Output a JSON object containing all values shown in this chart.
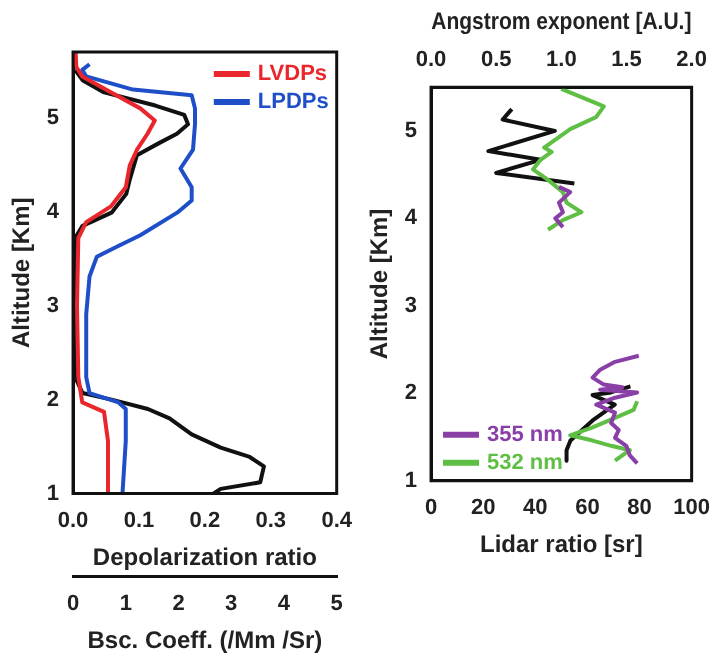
{
  "chart_data": [
    {
      "type": "line",
      "ylabel": "Altitude [Km]",
      "xlabel": "Depolarization ratio",
      "x2label": "Bsc. Coeff. (/Mm /Sr)",
      "ylim": [
        1,
        5.7
      ],
      "yticks": [
        1,
        2,
        3,
        4,
        5
      ],
      "xlim": [
        0,
        0.4
      ],
      "xticks": [
        {
          "value": 0,
          "label": "0.0"
        },
        0.1,
        0.2,
        0.3,
        0.4
      ],
      "x2lim": [
        0,
        5
      ],
      "x2ticks": [
        0,
        1,
        2,
        3,
        4,
        5
      ],
      "legend": "top right",
      "series": [
        {
          "name": "LVDPs",
          "color": "#e8262b",
          "x": [
            0.004,
            0.005,
            0.014,
            0.058,
            0.102,
            0.124,
            0.113,
            0.097,
            0.086,
            0.08,
            0.058,
            0.02,
            0.008,
            0.006,
            0.008,
            0.014,
            0.047,
            0.053,
            0.053
          ],
          "values": [
            5.69,
            5.54,
            5.44,
            5.27,
            5.1,
            4.97,
            4.83,
            4.66,
            4.49,
            4.26,
            4.06,
            3.89,
            3.72,
            3.0,
            2.24,
            1.97,
            1.87,
            1.56,
            1.0
          ]
        },
        {
          "name": "LPDPs",
          "color": "#1f4fc8",
          "x": [
            0.025,
            0.014,
            0.02,
            0.091,
            0.18,
            0.185,
            0.185,
            0.182,
            0.163,
            0.18,
            0.18,
            0.158,
            0.102,
            0.064,
            0.036,
            0.025,
            0.02,
            0.02,
            0.025,
            0.069,
            0.08,
            0.08,
            0.075
          ],
          "values": [
            5.57,
            5.51,
            5.44,
            5.3,
            5.24,
            5.1,
            4.93,
            4.66,
            4.46,
            4.26,
            4.12,
            3.99,
            3.75,
            3.62,
            3.52,
            3.31,
            2.91,
            2.24,
            2.07,
            1.97,
            1.9,
            1.56,
            1.0
          ]
        },
        {
          "color": "#111111",
          "axis": "x2",
          "x": [
            0.04,
            0.18,
            0.59,
            1.56,
            2.11,
            2.18,
            1.97,
            1.63,
            1.21,
            1.07,
            1.01,
            0.73,
            0.18,
            0.04,
            0.04,
            0.04,
            0.18,
            0.73,
            1.42,
            1.83,
            2.25,
            2.8,
            3.35,
            3.62,
            3.55,
            2.8,
            2.66
          ],
          "values": [
            5.51,
            5.4,
            5.27,
            5.13,
            5.03,
            4.93,
            4.83,
            4.73,
            4.6,
            4.33,
            4.19,
            3.99,
            3.85,
            3.72,
            2.91,
            2.24,
            2.07,
            2.0,
            1.9,
            1.8,
            1.63,
            1.49,
            1.39,
            1.29,
            1.12,
            1.05,
            1.0
          ]
        }
      ]
    },
    {
      "type": "line",
      "ylabel": "Altitude [Km]",
      "xlabel": "Lidar ratio [sr]",
      "x2label": "Angstrom exponent [A.U.]",
      "ylim": [
        1,
        5.5
      ],
      "yticks": [
        1,
        2,
        3,
        4,
        5
      ],
      "xlim": [
        0,
        100
      ],
      "xticks": [
        0,
        20,
        40,
        60,
        80,
        100
      ],
      "x2lim": [
        0,
        2
      ],
      "x2ticks": [
        {
          "value": 0,
          "label": "0.0"
        },
        0.5,
        {
          "value": 1,
          "label": "1.0"
        },
        1.5,
        {
          "value": 2,
          "label": "2.0"
        }
      ],
      "legend": "bottom left",
      "series": [
        {
          "name": "355 nm",
          "color": "#8a3fa6",
          "x": [
            49.1,
            53.4,
            49.1,
            50.6,
            47.7,
            50.6,
            null,
            79.7,
            70.6,
            64.9,
            62,
            66.3,
            73.4,
            64.9,
            79.1,
            70.6,
            63.4,
            70.6,
            69.1,
            72,
            70.6,
            74.9,
            76.3,
            79.1
          ],
          "values": [
            4.36,
            4.3,
            4.18,
            4.07,
            4.0,
            3.9,
            null,
            2.43,
            2.36,
            2.27,
            2.18,
            2.1,
            2.07,
            2.04,
            2.01,
            1.95,
            1.87,
            1.78,
            1.66,
            1.58,
            1.49,
            1.4,
            1.29,
            1.2
          ]
        },
        {
          "name": "532 nm",
          "color": "#5fbf45",
          "x": [
            50,
            66.3,
            63.4,
            53.4,
            43.4,
            46.3,
            42,
            39.1,
            44.9,
            50.6,
            52,
            57.7,
            50.6,
            44.9,
            null,
            79.1,
            77.7,
            70.6,
            62,
            53.4,
            62,
            69.1,
            76.3,
            73.4,
            70.6
          ],
          "values": [
            5.48,
            5.28,
            5.16,
            5.02,
            4.81,
            4.76,
            4.67,
            4.56,
            4.44,
            4.3,
            4.18,
            4.07,
            3.98,
            3.87,
            null,
            1.91,
            1.81,
            1.72,
            1.61,
            1.52,
            1.46,
            1.4,
            1.35,
            1.29,
            1.23
          ]
        },
        {
          "color": "#111111",
          "axis": "x2",
          "x": [
            0.62,
            0.55,
            0.95,
            0.44,
            0.84,
            0.5,
            1.1,
            null,
            1.53,
            1.38,
            1.24,
            1.41,
            1.24,
            1.07,
            1.04,
            1.04
          ],
          "values": [
            5.25,
            5.13,
            5.0,
            4.77,
            4.67,
            4.52,
            4.4,
            null,
            2.08,
            2.01,
            1.98,
            1.87,
            1.69,
            1.46,
            1.35,
            1.23
          ]
        }
      ]
    }
  ]
}
